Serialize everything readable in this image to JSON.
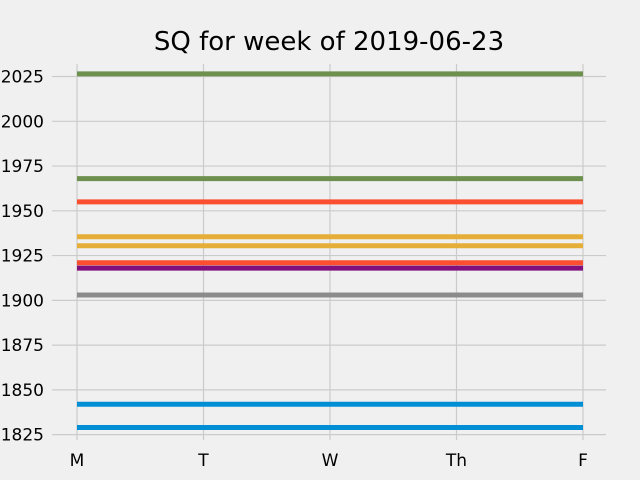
{
  "chart_data": {
    "type": "line",
    "title": "SQ for week of 2019-06-23",
    "xlabel": "",
    "ylabel": "",
    "categories": [
      "M",
      "T",
      "W",
      "Th",
      "F"
    ],
    "ylim": [
      1822,
      2032
    ],
    "yticks": [
      1825,
      1850,
      1875,
      1900,
      1925,
      1950,
      1975,
      2000,
      2025
    ],
    "grid": true,
    "series": [
      {
        "color": "#6d904f",
        "values": [
          2026.5,
          2026.5,
          2026.5,
          2026.5,
          2026.5
        ]
      },
      {
        "color": "#6d904f",
        "values": [
          1968,
          1968,
          1968,
          1968,
          1968
        ]
      },
      {
        "color": "#fc4f30",
        "values": [
          1955,
          1955,
          1955,
          1955,
          1955
        ]
      },
      {
        "color": "#e5ae38",
        "values": [
          1935.5,
          1935.5,
          1935.5,
          1935.5,
          1935.5
        ]
      },
      {
        "color": "#e5ae38",
        "values": [
          1930.5,
          1930.5,
          1930.5,
          1930.5,
          1930.5
        ]
      },
      {
        "color": "#fc4f30",
        "values": [
          1921,
          1921,
          1921,
          1921,
          1921
        ]
      },
      {
        "color": "#810f7c",
        "values": [
          1918,
          1918,
          1918,
          1918,
          1918
        ]
      },
      {
        "color": "#8b8b8b",
        "values": [
          1903,
          1903,
          1903,
          1903,
          1903
        ]
      },
      {
        "color": "#008fd5",
        "values": [
          1842,
          1842,
          1842,
          1842,
          1842
        ]
      },
      {
        "color": "#008fd5",
        "values": [
          1829,
          1829,
          1829,
          1829,
          1829
        ]
      }
    ]
  }
}
